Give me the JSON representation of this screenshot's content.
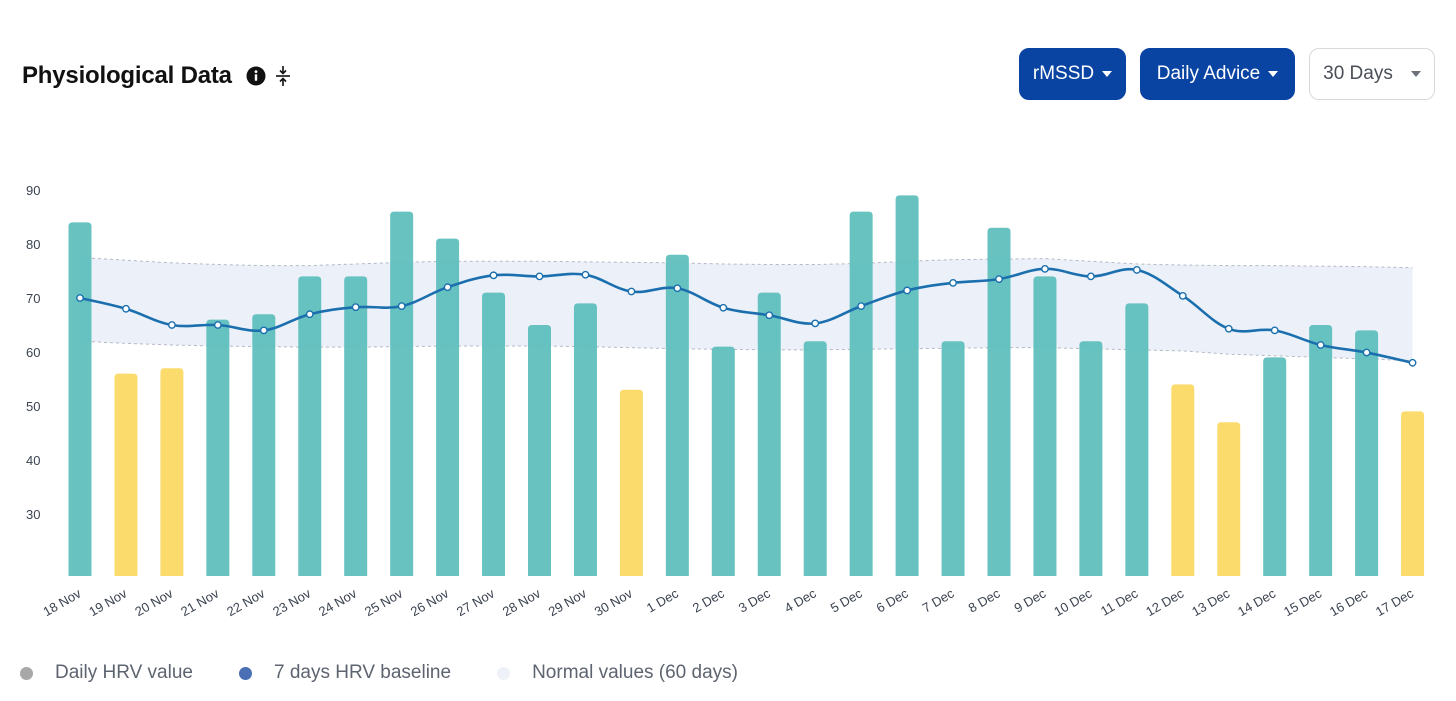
{
  "header": {
    "title": "Physiological Data",
    "info_icon": "info-circle-icon",
    "collapse_icon": "collapse-vertical-icon"
  },
  "controls": {
    "metric_label": "rMSSD",
    "advice_label": "Daily Advice",
    "range_label": "30 Days"
  },
  "colors": {
    "bar_normal": "#5fbfbd",
    "bar_low": "#fcd965",
    "baseline_line": "#1b6fae",
    "normal_band": "#e9eef8",
    "button_primary": "#0a44a3"
  },
  "legend": {
    "daily": "Daily HRV value",
    "baseline": "7 days HRV baseline",
    "normal": "Normal values (60 days)",
    "daily_color": "#a8a8a8",
    "baseline_color": "#4a6fb5",
    "normal_color": "#eef1f7"
  },
  "chart_data": {
    "type": "bar",
    "categories": [
      "18 Nov",
      "19 Nov",
      "20 Nov",
      "21 Nov",
      "22 Nov",
      "23 Nov",
      "24 Nov",
      "25 Nov",
      "26 Nov",
      "27 Nov",
      "28 Nov",
      "29 Nov",
      "30 Nov",
      "1 Dec",
      "2 Dec",
      "3 Dec",
      "4 Dec",
      "5 Dec",
      "6 Dec",
      "7 Dec",
      "8 Dec",
      "9 Dec",
      "10 Dec",
      "11 Dec",
      "12 Dec",
      "13 Dec",
      "14 Dec",
      "15 Dec",
      "16 Dec",
      "17 Dec"
    ],
    "y_ticks": [
      30,
      40,
      50,
      60,
      70,
      80,
      90
    ],
    "ylim": [
      20,
      92
    ],
    "series": [
      {
        "name": "Daily HRV value",
        "type": "bar",
        "values": [
          84,
          56,
          57,
          66,
          67,
          74,
          74,
          86,
          81,
          71,
          65,
          69,
          53,
          78,
          61,
          71,
          62,
          86,
          89,
          62,
          83,
          74,
          62,
          69,
          54,
          47,
          59,
          65,
          64,
          49
        ],
        "status": [
          "normal",
          "low",
          "low",
          "normal",
          "normal",
          "normal",
          "normal",
          "normal",
          "normal",
          "normal",
          "normal",
          "normal",
          "low",
          "normal",
          "normal",
          "normal",
          "normal",
          "normal",
          "normal",
          "normal",
          "normal",
          "normal",
          "normal",
          "normal",
          "low",
          "low",
          "normal",
          "normal",
          "normal",
          "low"
        ]
      },
      {
        "name": "7 days HRV baseline",
        "type": "line",
        "values": [
          70,
          68,
          65,
          65,
          64,
          67,
          68.3,
          68.5,
          72,
          74.2,
          74,
          74.3,
          71.2,
          71.8,
          68.2,
          66.8,
          65.3,
          68.5,
          71.4,
          72.8,
          73.5,
          75.4,
          74,
          75.2,
          70.4,
          64.3,
          64,
          61.3,
          59.9,
          58
        ]
      },
      {
        "name": "Normal values (60 days)",
        "type": "band",
        "upper": [
          77.5,
          77,
          76.5,
          76.2,
          76,
          76,
          76.3,
          76.6,
          76.8,
          76.8,
          76.8,
          76.7,
          76.6,
          76.5,
          76.3,
          76.2,
          76.2,
          76.4,
          76.8,
          77.1,
          77.2,
          77.3,
          76.8,
          76.3,
          76.1,
          76,
          76,
          75.9,
          75.8,
          75.6
        ],
        "lower": [
          62,
          61.6,
          61.3,
          61.1,
          61,
          60.9,
          60.9,
          61,
          61.1,
          61.1,
          61.1,
          61,
          60.8,
          60.6,
          60.5,
          60.4,
          60.4,
          60.5,
          60.6,
          60.7,
          60.8,
          60.8,
          60.6,
          60.4,
          60.2,
          59.6,
          59.3,
          59,
          58.7,
          58.4
        ]
      }
    ],
    "legend_position": "bottom-left"
  }
}
